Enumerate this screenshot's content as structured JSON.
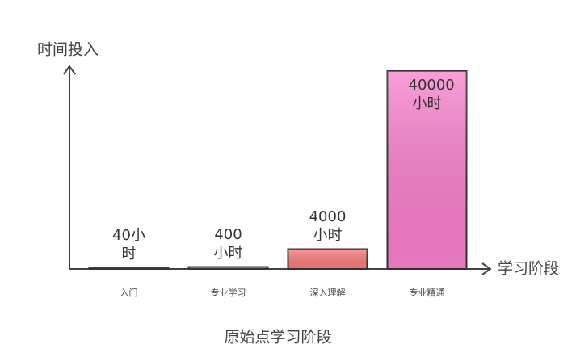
{
  "chart_data": {
    "type": "bar",
    "title": "原始点学习阶段",
    "y_label": "时间投入",
    "x_label": "学习阶段",
    "categories": [
      "入门",
      "专业学习",
      "深入理解",
      "专业精通"
    ],
    "values": [
      40,
      400,
      4000,
      40000
    ],
    "value_labels": [
      "40小时",
      "400小时",
      "4000小时",
      "40000小时"
    ],
    "colors": [
      "#f48a8a",
      "#f48a8a",
      "#f87a7a",
      "#f77fcb"
    ],
    "ylim": [
      0,
      40000
    ]
  }
}
